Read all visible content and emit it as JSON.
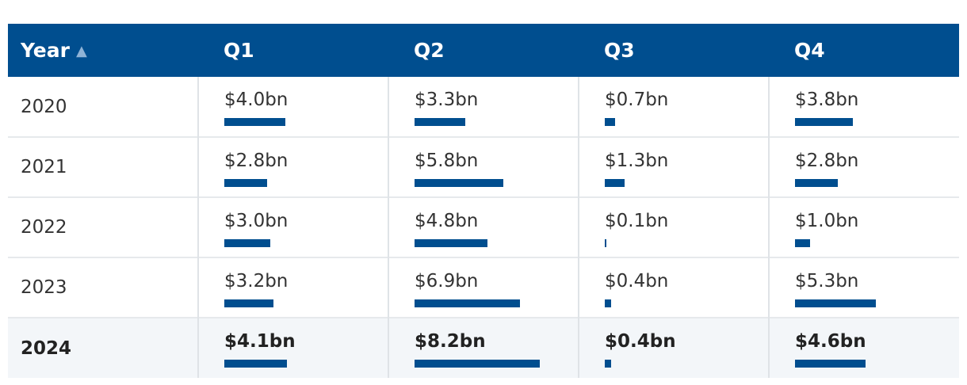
{
  "table": {
    "header": {
      "year_label": "Year",
      "sort_glyph": "▲",
      "quarters": [
        "Q1",
        "Q2",
        "Q3",
        "Q4"
      ]
    },
    "rows": [
      {
        "year": "2020",
        "cells": [
          "$4.0bn",
          "$3.3bn",
          "$0.7bn",
          "$3.8bn"
        ],
        "values": [
          4.0,
          3.3,
          0.7,
          3.8
        ]
      },
      {
        "year": "2021",
        "cells": [
          "$2.8bn",
          "$5.8bn",
          "$1.3bn",
          "$2.8bn"
        ],
        "values": [
          2.8,
          5.8,
          1.3,
          2.8
        ]
      },
      {
        "year": "2022",
        "cells": [
          "$3.0bn",
          "$4.8bn",
          "$0.1bn",
          "$1.0bn"
        ],
        "values": [
          3.0,
          4.8,
          0.1,
          1.0
        ]
      },
      {
        "year": "2023",
        "cells": [
          "$3.2bn",
          "$6.9bn",
          "$0.4bn",
          "$5.3bn"
        ],
        "values": [
          3.2,
          6.9,
          0.4,
          5.3
        ]
      },
      {
        "year": "2024",
        "cells": [
          "$4.1bn",
          "$8.2bn",
          "$0.4bn",
          "$4.6bn"
        ],
        "values": [
          4.1,
          8.2,
          0.4,
          4.6
        ],
        "highlighted": true
      }
    ],
    "colors": {
      "header_bg": "#004e8f",
      "bar": "#004e8f",
      "highlight_row": "#f3f6f9"
    }
  },
  "chart_data": {
    "type": "table",
    "columns": [
      "Year",
      "Q1",
      "Q2",
      "Q3",
      "Q4"
    ],
    "categories": [
      "2020",
      "2021",
      "2022",
      "2023",
      "2024"
    ],
    "series": [
      {
        "name": "Q1",
        "values": [
          4.0,
          2.8,
          3.0,
          3.2,
          4.1
        ]
      },
      {
        "name": "Q2",
        "values": [
          3.3,
          5.8,
          4.8,
          6.9,
          8.2
        ]
      },
      {
        "name": "Q3",
        "values": [
          0.7,
          1.3,
          0.1,
          0.4,
          0.4
        ]
      },
      {
        "name": "Q4",
        "values": [
          3.8,
          2.8,
          1.0,
          5.3,
          4.6
        ]
      }
    ],
    "unit": "bn",
    "sort": {
      "column": "Year",
      "direction": "ascending"
    }
  }
}
